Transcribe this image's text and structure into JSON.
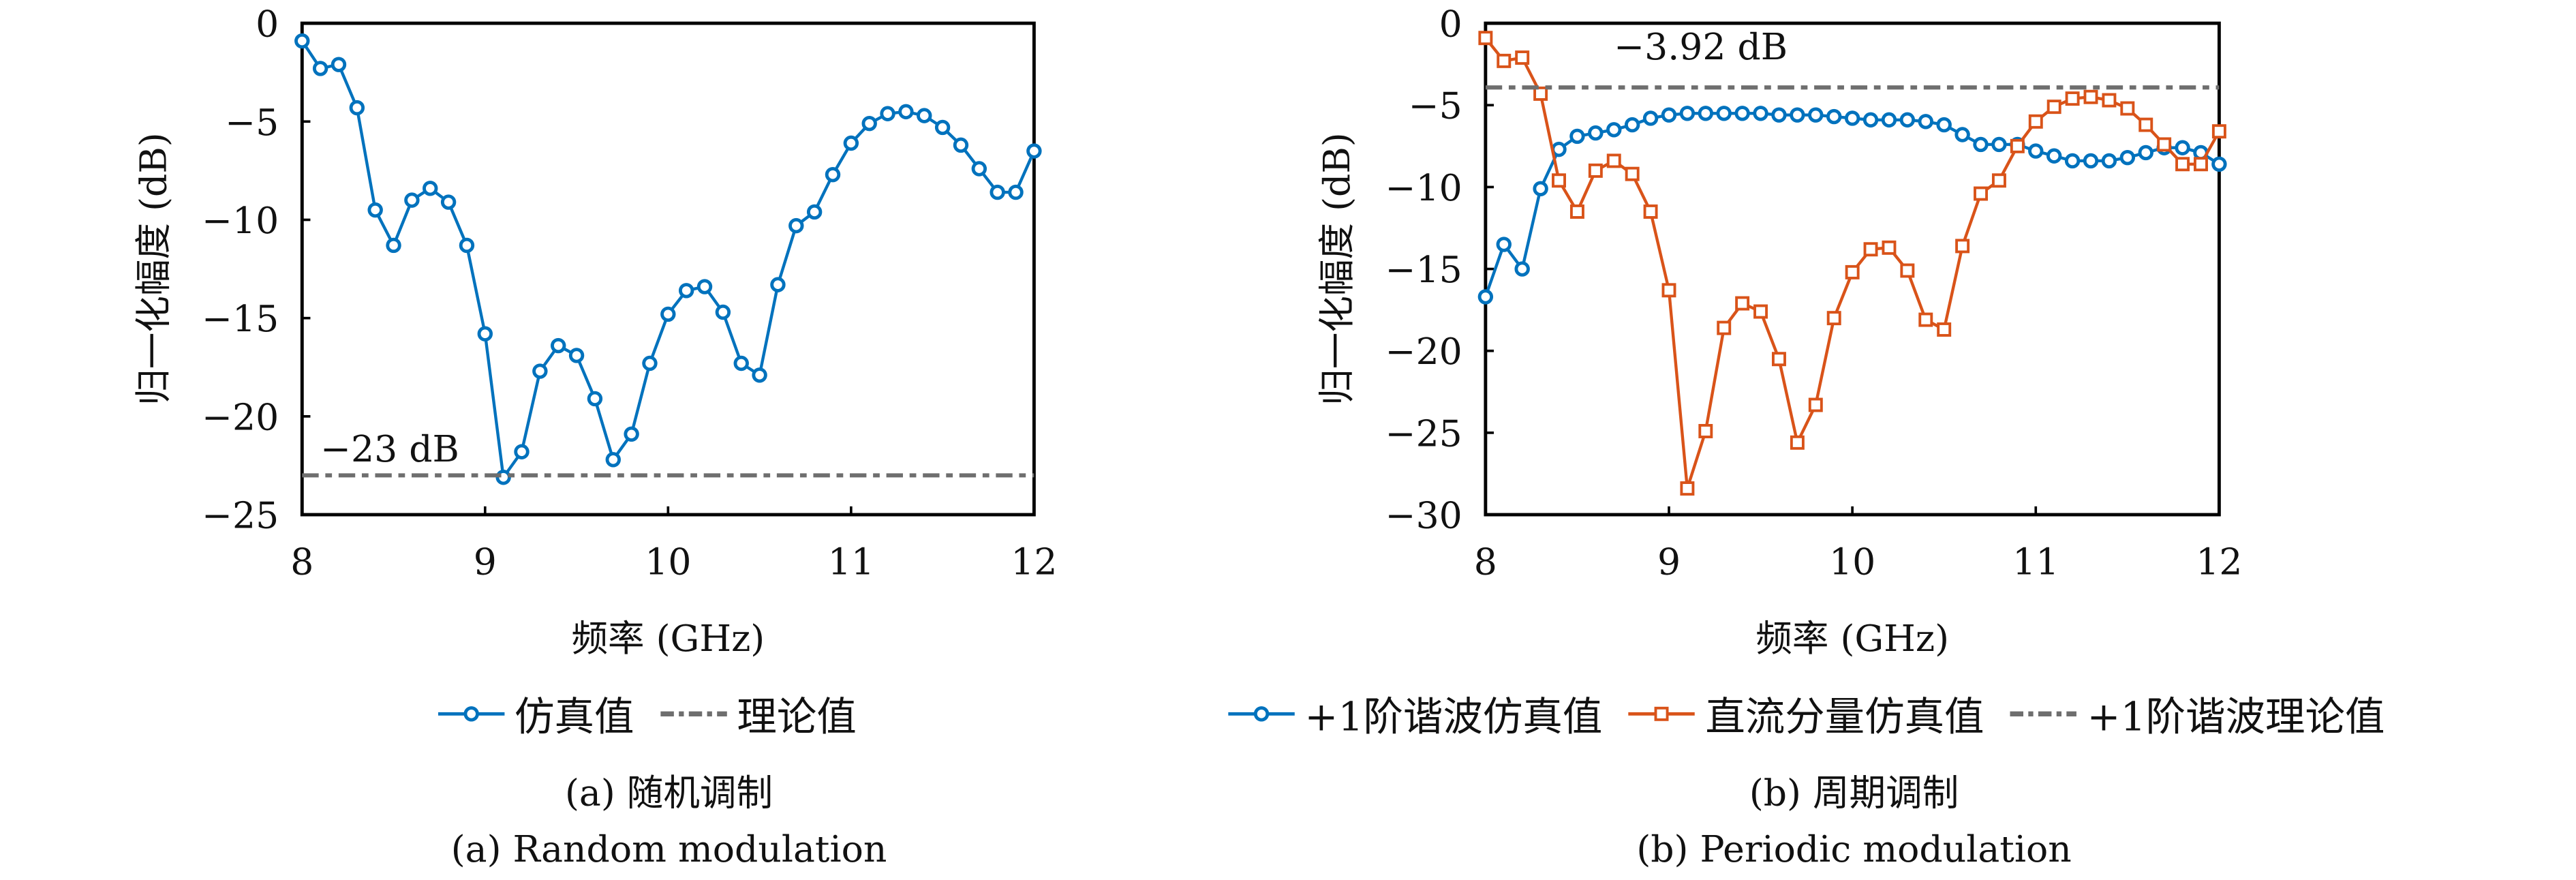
{
  "figure": {
    "panels": [
      {
        "caption_cn": "(a) 随机调制",
        "caption_en": "(a) Random modulation",
        "legend": [
          {
            "label": "仿真值",
            "style": "line-circle",
            "color": "#0072BD"
          },
          {
            "label": "理论值",
            "style": "dash-dot",
            "color": "#6E6E6E"
          }
        ],
        "annotation": "−23 dB"
      },
      {
        "caption_cn": "(b) 周期调制",
        "caption_en": "(b) Periodic modulation",
        "legend": [
          {
            "label": "+1阶谐波仿真值",
            "style": "line-circle",
            "color": "#0072BD"
          },
          {
            "label": "直流分量仿真值",
            "style": "line-square",
            "color": "#D95319"
          },
          {
            "label": "+1阶谐波理论值",
            "style": "dash-dot",
            "color": "#6E6E6E"
          }
        ],
        "annotation": "−3.92 dB"
      }
    ]
  },
  "chart_data": [
    {
      "type": "line",
      "title": "(a) 随机调制 / (a) Random modulation",
      "xlabel": "频率 (GHz)",
      "ylabel": "归一化幅度 (dB)",
      "xlim": [
        8,
        12
      ],
      "ylim": [
        -25,
        0
      ],
      "xticks": [
        8,
        9,
        10,
        11,
        12
      ],
      "yticks": [
        0,
        -5,
        -10,
        -15,
        -20,
        -25
      ],
      "xtick_labels": [
        "8",
        "9",
        "10",
        "11",
        "12"
      ],
      "ytick_labels": [
        "0",
        "−5",
        "−10",
        "−15",
        "−20",
        "−25"
      ],
      "grid": false,
      "legend_position": "below",
      "x": [
        8.0,
        8.1,
        8.2,
        8.3,
        8.4,
        8.5,
        8.6,
        8.7,
        8.8,
        8.9,
        9.0,
        9.1,
        9.2,
        9.3,
        9.4,
        9.5,
        9.6,
        9.7,
        9.8,
        9.9,
        10.0,
        10.1,
        10.2,
        10.3,
        10.4,
        10.5,
        10.6,
        10.7,
        10.8,
        10.9,
        11.0,
        11.1,
        11.2,
        11.3,
        11.4,
        11.5,
        11.6,
        11.7,
        11.8,
        11.9,
        12.0
      ],
      "series": [
        {
          "name": "仿真值",
          "marker": "circle",
          "color": "#0072BD",
          "values": [
            -0.9,
            -2.3,
            -2.1,
            -4.3,
            -9.5,
            -11.3,
            -9.0,
            -8.4,
            -9.1,
            -11.3,
            -15.8,
            -23.1,
            -21.8,
            -17.7,
            -16.4,
            -16.9,
            -19.1,
            -22.2,
            -20.9,
            -17.3,
            -14.8,
            -13.6,
            -13.4,
            -14.7,
            -17.3,
            -17.9,
            -13.3,
            -10.3,
            -9.6,
            -7.7,
            -6.1,
            -5.1,
            -4.6,
            -4.5,
            -4.7,
            -5.3,
            -6.2,
            -7.4,
            -8.6,
            -8.6,
            -6.5
          ]
        },
        {
          "name": "理论值",
          "marker": "none",
          "linestyle": "dash-dot",
          "color": "#6E6E6E",
          "constant": -23
        }
      ],
      "annotations": [
        {
          "text": "−23 dB",
          "x": 8.1,
          "y": -22.3
        }
      ]
    },
    {
      "type": "line",
      "title": "(b) 周期调制 / (b) Periodic modulation",
      "xlabel": "频率 (GHz)",
      "ylabel": "归一化幅度 (dB)",
      "xlim": [
        8,
        12
      ],
      "ylim": [
        -30,
        0
      ],
      "xticks": [
        8,
        9,
        10,
        11,
        12
      ],
      "yticks": [
        0,
        -5,
        -10,
        -15,
        -20,
        -25,
        -30
      ],
      "xtick_labels": [
        "8",
        "9",
        "10",
        "11",
        "12"
      ],
      "ytick_labels": [
        "0",
        "−5",
        "−10",
        "−15",
        "−20",
        "−25",
        "−30"
      ],
      "grid": false,
      "legend_position": "below",
      "x": [
        8.0,
        8.1,
        8.2,
        8.3,
        8.4,
        8.5,
        8.6,
        8.7,
        8.8,
        8.9,
        9.0,
        9.1,
        9.2,
        9.3,
        9.4,
        9.5,
        9.6,
        9.7,
        9.8,
        9.9,
        10.0,
        10.1,
        10.2,
        10.3,
        10.4,
        10.5,
        10.6,
        10.7,
        10.8,
        10.9,
        11.0,
        11.1,
        11.2,
        11.3,
        11.4,
        11.5,
        11.6,
        11.7,
        11.8,
        11.9,
        12.0
      ],
      "series": [
        {
          "name": "+1阶谐波仿真值",
          "marker": "circle",
          "color": "#0072BD",
          "values": [
            -16.7,
            -13.5,
            -15.0,
            -10.1,
            -7.7,
            -6.9,
            -6.7,
            -6.5,
            -6.2,
            -5.8,
            -5.6,
            -5.5,
            -5.5,
            -5.5,
            -5.5,
            -5.5,
            -5.6,
            -5.6,
            -5.6,
            -5.7,
            -5.8,
            -5.9,
            -5.9,
            -5.9,
            -6.0,
            -6.2,
            -6.8,
            -7.4,
            -7.4,
            -7.4,
            -7.8,
            -8.1,
            -8.4,
            -8.4,
            -8.4,
            -8.2,
            -7.9,
            -7.6,
            -7.6,
            -7.9,
            -8.6
          ]
        },
        {
          "name": "直流分量仿真值",
          "marker": "square",
          "color": "#D95319",
          "values": [
            -0.9,
            -2.3,
            -2.1,
            -4.3,
            -9.6,
            -11.5,
            -9.0,
            -8.4,
            -9.2,
            -11.5,
            -16.3,
            -28.4,
            -24.9,
            -18.6,
            -17.1,
            -17.6,
            -20.5,
            -25.6,
            -23.3,
            -18.0,
            -15.2,
            -13.8,
            -13.7,
            -15.1,
            -18.1,
            -18.7,
            -13.6,
            -10.4,
            -9.6,
            -7.5,
            -6.0,
            -5.1,
            -4.6,
            -4.5,
            -4.7,
            -5.2,
            -6.2,
            -7.4,
            -8.6,
            -8.6,
            -6.6
          ]
        },
        {
          "name": "+1阶谐波理论值",
          "marker": "none",
          "linestyle": "dash-dot",
          "color": "#6E6E6E",
          "constant": -3.92
        }
      ],
      "annotations": [
        {
          "text": "−3.92 dB",
          "x": 8.7,
          "y": -2.2
        }
      ]
    }
  ]
}
